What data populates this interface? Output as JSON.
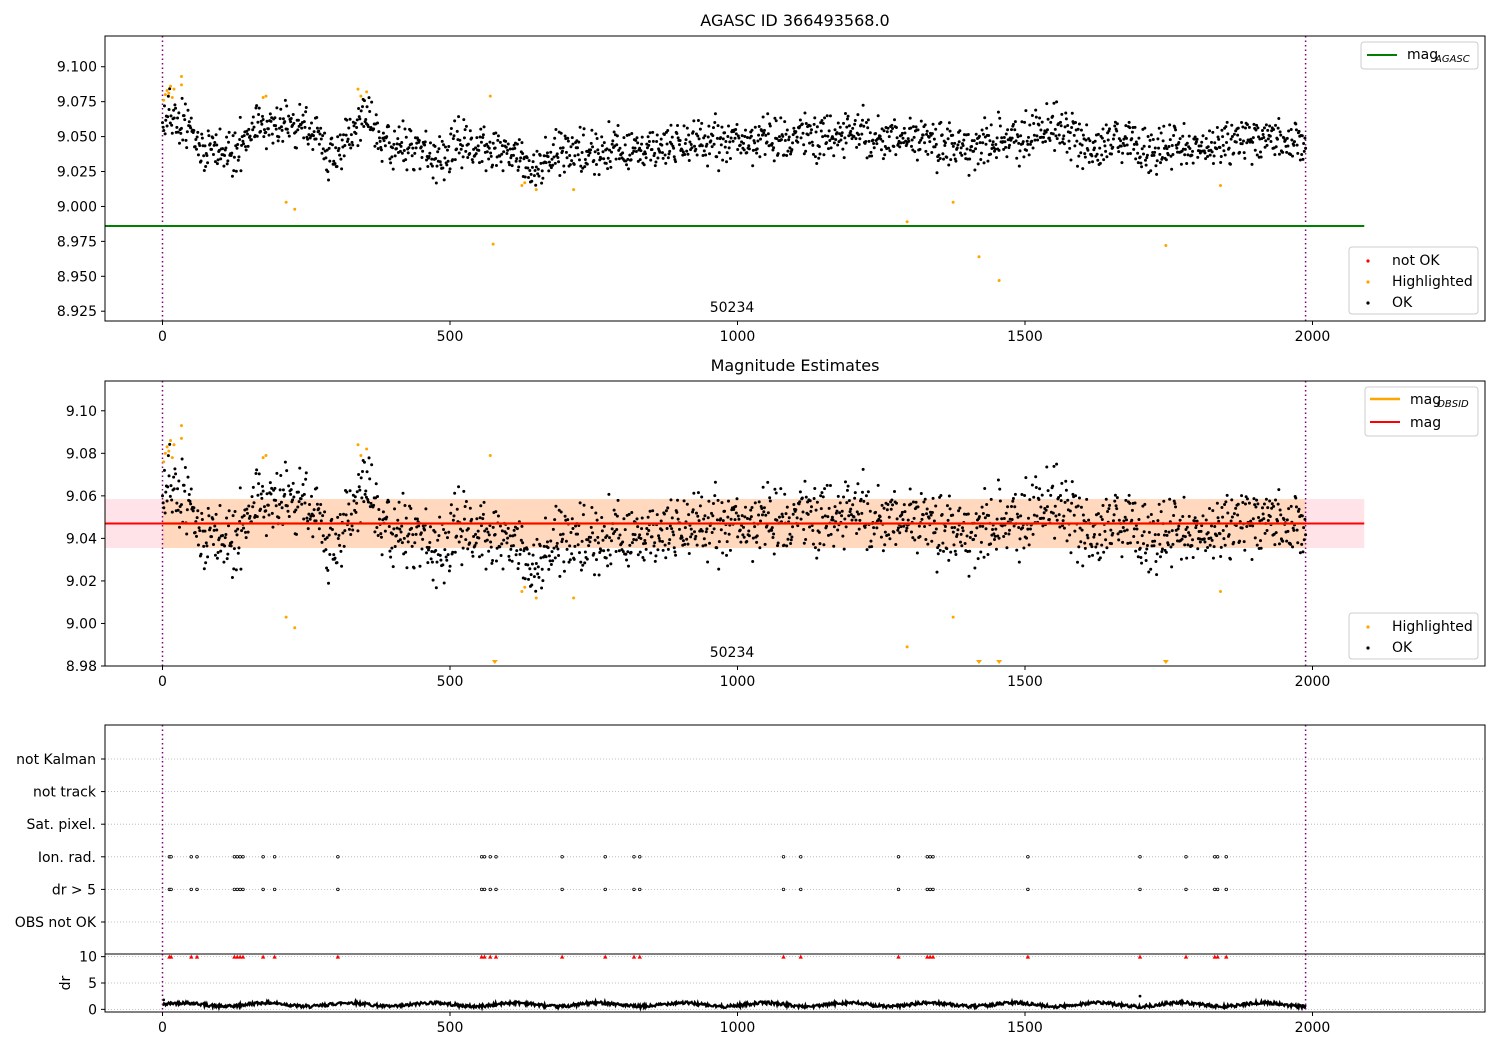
{
  "chart_data": [
    {
      "type": "scatter",
      "title": "AGASC ID 366493568.0",
      "annotation": "50234",
      "xlim": [
        -100,
        2300
      ],
      "ylim": [
        8.918,
        9.122
      ],
      "xticks": [
        0,
        500,
        1000,
        1500,
        2000
      ],
      "yticks": [
        8.925,
        8.95,
        8.975,
        9.0,
        9.025,
        9.05,
        9.075,
        9.1
      ],
      "ytick_labels": [
        "8.925",
        "8.950",
        "8.975",
        "9.000",
        "9.025",
        "9.050",
        "9.075",
        "9.100"
      ],
      "vlines": [
        0,
        1988
      ],
      "grid": false,
      "lines": [
        {
          "name": "mag_AGASC",
          "label_main": "mag",
          "label_sub": "AGASC",
          "y": 8.986,
          "x": [
            -100,
            2090
          ],
          "color": "#008000"
        }
      ],
      "series": [
        {
          "name": "not OK",
          "color": "#ff0000",
          "points": []
        },
        {
          "name": "Highlighted",
          "color": "#ffa500",
          "points": [
            [
              2,
              9.076
            ],
            [
              5,
              9.08
            ],
            [
              8,
              9.083
            ],
            [
              11,
              9.081
            ],
            [
              14,
              9.086
            ],
            [
              17,
              9.078
            ],
            [
              20,
              9.084
            ],
            [
              33,
              9.093
            ],
            [
              33,
              9.087
            ],
            [
              175,
              9.078
            ],
            [
              180,
              9.079
            ],
            [
              215,
              9.003
            ],
            [
              230,
              8.998
            ],
            [
              340,
              9.084
            ],
            [
              345,
              9.079
            ],
            [
              355,
              9.082
            ],
            [
              570,
              9.079
            ],
            [
              575,
              8.973
            ],
            [
              625,
              9.015
            ],
            [
              630,
              9.017
            ],
            [
              650,
              9.012
            ],
            [
              715,
              9.012
            ],
            [
              1295,
              8.989
            ],
            [
              1375,
              9.003
            ],
            [
              1420,
              8.964
            ],
            [
              1455,
              8.947
            ],
            [
              1745,
              8.972
            ],
            [
              1840,
              9.015
            ]
          ]
        },
        {
          "name": "OK",
          "color": "#000000",
          "generated": true,
          "x_range": [
            0,
            1988
          ],
          "count": 1750,
          "base": 9.047,
          "seed": 366493568
        }
      ],
      "legends": [
        {
          "position": "upper-right",
          "entries": [
            "mag_AGASC"
          ]
        },
        {
          "position": "lower-right",
          "entries": [
            "not OK",
            "Highlighted",
            "OK"
          ]
        }
      ]
    },
    {
      "type": "scatter",
      "title": "Magnitude Estimates",
      "annotation": "50234",
      "xlim": [
        -100,
        2300
      ],
      "ylim": [
        8.98,
        9.114
      ],
      "xticks": [
        0,
        500,
        1000,
        1500,
        2000
      ],
      "yticks": [
        8.98,
        9.0,
        9.02,
        9.04,
        9.06,
        9.08,
        9.1
      ],
      "ytick_labels": [
        "8.98",
        "9.00",
        "9.02",
        "9.04",
        "9.06",
        "9.08",
        "9.10"
      ],
      "vlines": [
        0,
        1988
      ],
      "grid": false,
      "band": {
        "y0": 9.0355,
        "y1": 9.0585,
        "x": [
          -100,
          2090
        ],
        "fill": "#ffc0cb",
        "opacity": 0.45
      },
      "band_inner": {
        "y0": 9.0355,
        "y1": 9.0585,
        "x": [
          0,
          1988
        ],
        "fill": "#ffa500",
        "opacity": 0.18
      },
      "lines": [
        {
          "name": "mag_OBSID",
          "label_main": "mag",
          "label_sub": "OBSID",
          "y": 9.047,
          "x": [
            0,
            1988
          ],
          "color": "#ffa500"
        },
        {
          "name": "mag",
          "label_main": "mag",
          "label_sub": "",
          "y": 9.047,
          "x": [
            -100,
            2090
          ],
          "color": "#ff0000"
        }
      ],
      "series": [
        {
          "name": "Highlighted",
          "color": "#ffa500",
          "points": [
            [
              2,
              9.076
            ],
            [
              5,
              9.08
            ],
            [
              8,
              9.083
            ],
            [
              11,
              9.081
            ],
            [
              14,
              9.086
            ],
            [
              17,
              9.078
            ],
            [
              20,
              9.084
            ],
            [
              33,
              9.093
            ],
            [
              33,
              9.087
            ],
            [
              175,
              9.078
            ],
            [
              180,
              9.079
            ],
            [
              215,
              9.003
            ],
            [
              230,
              8.998
            ],
            [
              340,
              9.084
            ],
            [
              345,
              9.079
            ],
            [
              355,
              9.082
            ],
            [
              570,
              9.079
            ],
            [
              625,
              9.015
            ],
            [
              630,
              9.017
            ],
            [
              650,
              9.012
            ],
            [
              715,
              9.012
            ],
            [
              1295,
              8.989
            ],
            [
              1375,
              9.003
            ],
            [
              1840,
              9.015
            ]
          ]
        },
        {
          "name": "OK",
          "color": "#000000",
          "generated": true,
          "x_range": [
            0,
            1988
          ],
          "count": 1750,
          "base": 9.047,
          "seed": 366493568
        }
      ],
      "clipped_markers": {
        "color": "#ffa500",
        "x": [
          578,
          1420,
          1455,
          1745
        ],
        "y": 8.98
      },
      "legends": [
        {
          "position": "upper-right",
          "entries": [
            "mag_OBSID",
            "mag"
          ]
        },
        {
          "position": "lower-right",
          "entries": [
            "Highlighted",
            "OK"
          ]
        }
      ]
    },
    {
      "type": "scatter",
      "title": "",
      "xlim": [
        -100,
        2300
      ],
      "xticks": [
        0,
        500,
        1000,
        1500,
        2000
      ],
      "vlines": [
        0,
        1988
      ],
      "categories": [
        "not Kalman",
        "not track",
        "Sat. pixel.",
        "Ion. rad.",
        "dr > 5",
        "OBS not OK"
      ],
      "flag_points": {
        "Ion. rad.": [
          12,
          15,
          50,
          60,
          125,
          130,
          135,
          140,
          175,
          195,
          305,
          555,
          560,
          570,
          580,
          695,
          770,
          820,
          830,
          1080,
          1110,
          1280,
          1330,
          1335,
          1340,
          1505,
          1700,
          1780,
          1830,
          1835,
          1850
        ],
        "dr > 5": [
          12,
          15,
          50,
          60,
          125,
          130,
          135,
          140,
          175,
          195,
          305,
          555,
          560,
          570,
          580,
          695,
          770,
          820,
          830,
          1080,
          1110,
          1280,
          1330,
          1335,
          1340,
          1505,
          1700,
          1780,
          1830,
          1835,
          1850
        ]
      },
      "grid": true
    },
    {
      "type": "line",
      "title": "",
      "ylabel": "dr",
      "xlim": [
        -100,
        2300
      ],
      "ylim": [
        -0.5,
        10.5
      ],
      "xticks": [
        0,
        500,
        1000,
        1500,
        2000
      ],
      "yticks": [
        0,
        5,
        10
      ],
      "ytick_labels": [
        "0",
        "5",
        "10"
      ],
      "vlines": [
        0,
        1988
      ],
      "dr_generated": {
        "x_range": [
          0,
          1988
        ],
        "count": 1500,
        "base": 0.9,
        "seed": 42
      },
      "dr_spikes": [
        [
          2,
          1.8
        ],
        [
          1700,
          2.5
        ]
      ],
      "high_dr_markers": {
        "y": 10,
        "color": "#ff0000",
        "x": [
          12,
          15,
          50,
          60,
          125,
          130,
          135,
          140,
          175,
          195,
          305,
          555,
          560,
          570,
          580,
          695,
          770,
          820,
          830,
          1080,
          1110,
          1280,
          1330,
          1335,
          1340,
          1505,
          1700,
          1780,
          1830,
          1835,
          1850
        ]
      },
      "grid": true
    }
  ]
}
